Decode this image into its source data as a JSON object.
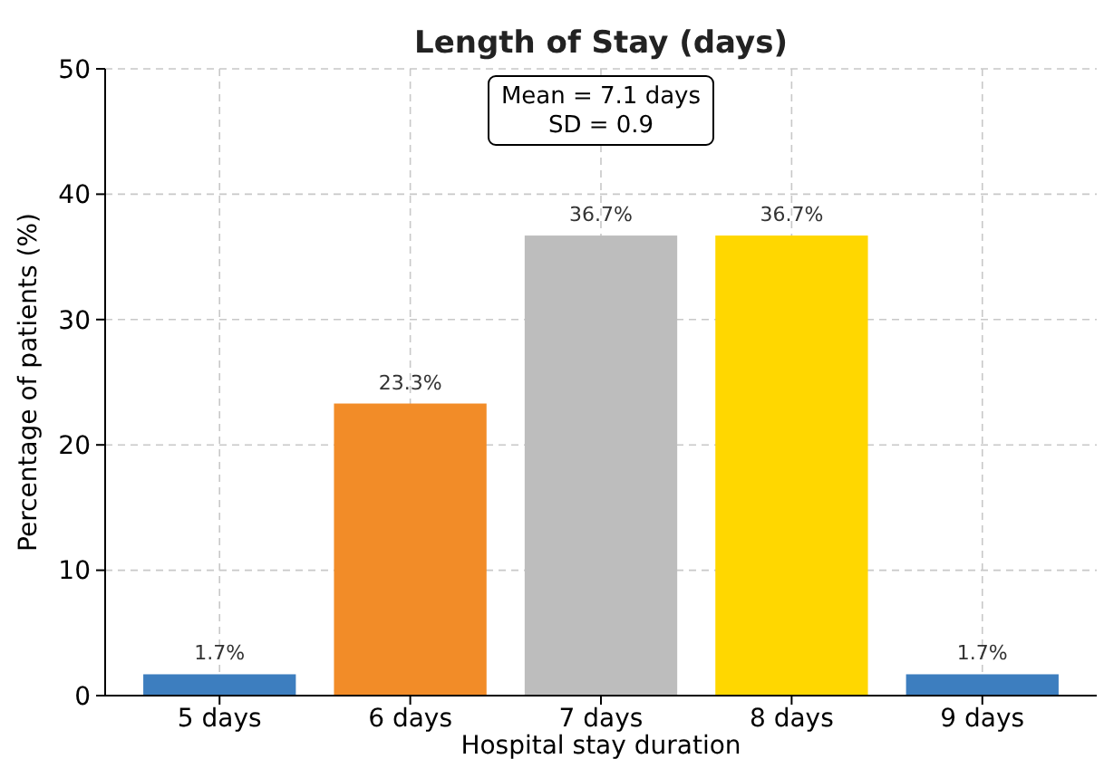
{
  "chart_data": {
    "type": "bar",
    "title": "Length of Stay (days)",
    "xlabel": "Hospital stay duration",
    "ylabel": "Percentage of patients (%)",
    "categories": [
      "5 days",
      "6 days",
      "7 days",
      "8 days",
      "9 days"
    ],
    "values": [
      1.7,
      23.3,
      36.7,
      36.7,
      1.7
    ],
    "colors": [
      "#3d7ebf",
      "#f28c28",
      "#bdbdbd",
      "#ffd700",
      "#3d7ebf"
    ],
    "value_labels": [
      "1.7%",
      "23.3%",
      "36.7%",
      "36.7%",
      "1.7%"
    ],
    "ylim": [
      0,
      50
    ],
    "yticks": [
      0,
      10,
      20,
      30,
      40,
      50
    ],
    "grid": true,
    "annotations": [
      "Mean = 7.1 days\nSD = 0.9"
    ]
  }
}
